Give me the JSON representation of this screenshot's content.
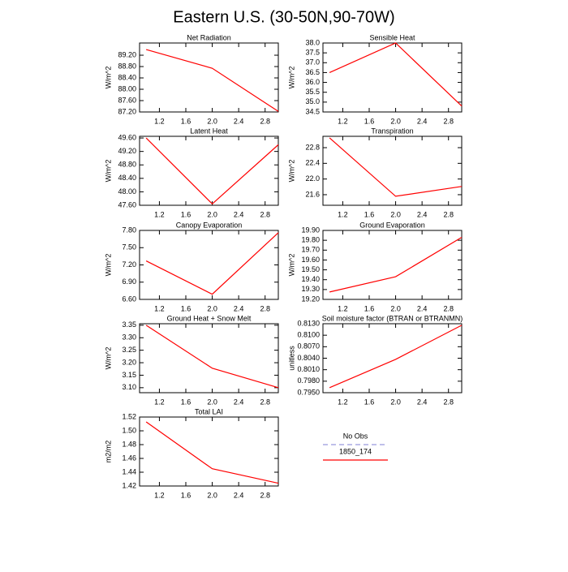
{
  "title": "Eastern U.S. (30-50N,90-70W)",
  "legend": [
    {
      "name": "No Obs",
      "color": "#9999dd",
      "dashed": true
    },
    {
      "name": "1850_174",
      "color": "#ff0000",
      "dashed": false
    }
  ],
  "chart_data": [
    {
      "type": "line",
      "title": "Net Radiation",
      "ylabel": "W/m^2",
      "x": [
        1,
        2,
        3
      ],
      "series": [
        {
          "color": "#ff0000",
          "values": [
            89.4,
            88.74,
            87.22
          ]
        }
      ],
      "xlim": [
        0.9,
        3.0
      ],
      "xticks": [
        1.2,
        1.6,
        {
          "value": 2.0,
          "label": "2.0"
        },
        2.4,
        2.8
      ],
      "ylim": [
        87.2,
        89.63
      ],
      "yticks": [
        {
          "value": 87.2,
          "label": "87.20"
        },
        {
          "value": 87.6,
          "label": "87.60"
        },
        {
          "value": 88.0,
          "label": "88.00"
        },
        {
          "value": 88.4,
          "label": "88.40"
        },
        {
          "value": 88.8,
          "label": "88.80"
        },
        {
          "value": 89.2,
          "label": "89.20"
        }
      ]
    },
    {
      "type": "line",
      "title": "Sensible Heat",
      "ylabel": "W/m^2",
      "x": [
        1,
        2,
        3
      ],
      "series": [
        {
          "color": "#ff0000",
          "values": [
            36.5,
            38.0,
            34.8
          ]
        }
      ],
      "xlim": [
        0.9,
        3.0
      ],
      "xticks": [
        1.2,
        1.6,
        {
          "value": 2.0,
          "label": "2.0"
        },
        2.4,
        2.8
      ],
      "ylim": [
        34.5,
        38.0
      ],
      "yticks": [
        34.5,
        {
          "value": 35.0,
          "label": "35.0"
        },
        35.5,
        {
          "value": 36.0,
          "label": "36.0"
        },
        36.5,
        {
          "value": 37.0,
          "label": "37.0"
        },
        37.5,
        {
          "value": 38.0,
          "label": "38.0"
        }
      ]
    },
    {
      "type": "line",
      "title": "Latent Heat",
      "ylabel": "W/m^2",
      "x": [
        1,
        2,
        3
      ],
      "series": [
        {
          "color": "#ff0000",
          "values": [
            49.6,
            47.64,
            49.4
          ]
        }
      ],
      "xlim": [
        0.9,
        3.0
      ],
      "xticks": [
        1.2,
        1.6,
        {
          "value": 2.0,
          "label": "2.0"
        },
        2.4,
        2.8
      ],
      "ylim": [
        47.6,
        49.65
      ],
      "yticks": [
        {
          "value": 47.6,
          "label": "47.60"
        },
        {
          "value": 48.0,
          "label": "48.00"
        },
        {
          "value": 48.4,
          "label": "48.40"
        },
        {
          "value": 48.8,
          "label": "48.80"
        },
        {
          "value": 49.2,
          "label": "49.20"
        },
        {
          "value": 49.6,
          "label": "49.60"
        }
      ]
    },
    {
      "type": "line",
      "title": "Transpiration",
      "ylabel": "W/m^2",
      "x": [
        1,
        2,
        3
      ],
      "series": [
        {
          "color": "#ff0000",
          "values": [
            23.05,
            21.56,
            21.81
          ]
        }
      ],
      "xlim": [
        0.9,
        3.0
      ],
      "xticks": [
        1.2,
        1.6,
        {
          "value": 2.0,
          "label": "2.0"
        },
        2.4,
        2.8
      ],
      "ylim": [
        21.33,
        23.09
      ],
      "yticks": [
        21.6,
        {
          "value": 22.0,
          "label": "22.0"
        },
        22.4,
        22.8
      ]
    },
    {
      "type": "line",
      "title": "Canopy Evaporation",
      "ylabel": "W/m^2",
      "x": [
        1,
        2,
        3
      ],
      "series": [
        {
          "color": "#ff0000",
          "values": [
            7.27,
            6.69,
            7.76
          ]
        }
      ],
      "xlim": [
        0.9,
        3.0
      ],
      "xticks": [
        1.2,
        1.6,
        {
          "value": 2.0,
          "label": "2.0"
        },
        2.4,
        2.8
      ],
      "ylim": [
        6.6,
        7.8
      ],
      "yticks": [
        {
          "value": 6.6,
          "label": "6.60"
        },
        {
          "value": 6.9,
          "label": "6.90"
        },
        {
          "value": 7.2,
          "label": "7.20"
        },
        {
          "value": 7.5,
          "label": "7.50"
        },
        {
          "value": 7.8,
          "label": "7.80"
        }
      ]
    },
    {
      "type": "line",
      "title": "Ground Evaporation",
      "ylabel": "W/m^2",
      "x": [
        1,
        2,
        3
      ],
      "series": [
        {
          "color": "#ff0000",
          "values": [
            19.275,
            19.43,
            19.83
          ]
        }
      ],
      "xlim": [
        0.9,
        3.0
      ],
      "xticks": [
        1.2,
        1.6,
        {
          "value": 2.0,
          "label": "2.0"
        },
        2.4,
        2.8
      ],
      "ylim": [
        19.2,
        19.9
      ],
      "yticks": [
        {
          "value": 19.2,
          "label": "19.20"
        },
        {
          "value": 19.3,
          "label": "19.30"
        },
        {
          "value": 19.4,
          "label": "19.40"
        },
        {
          "value": 19.5,
          "label": "19.50"
        },
        {
          "value": 19.6,
          "label": "19.60"
        },
        {
          "value": 19.7,
          "label": "19.70"
        },
        {
          "value": 19.8,
          "label": "19.80"
        },
        {
          "value": 19.9,
          "label": "19.90"
        }
      ]
    },
    {
      "type": "line",
      "title": "Ground Heat + Snow Melt",
      "ylabel": "W/m^2",
      "x": [
        1,
        2,
        3
      ],
      "series": [
        {
          "color": "#ff0000",
          "values": [
            3.35,
            3.178,
            3.1
          ]
        }
      ],
      "xlim": [
        0.9,
        3.0
      ],
      "xticks": [
        1.2,
        1.6,
        {
          "value": 2.0,
          "label": "2.0"
        },
        2.4,
        2.8
      ],
      "ylim": [
        3.08,
        3.356
      ],
      "yticks": [
        {
          "value": 3.1,
          "label": "3.10"
        },
        3.15,
        {
          "value": 3.2,
          "label": "3.20"
        },
        3.25,
        {
          "value": 3.3,
          "label": "3.30"
        },
        3.35
      ]
    },
    {
      "type": "line",
      "title": "Soil moisture factor (BTRAN or BTRANMN)",
      "ylabel": "unitless",
      "x": [
        1,
        2,
        3
      ],
      "series": [
        {
          "color": "#ff0000",
          "values": [
            0.7963,
            0.8037,
            0.8126
          ]
        }
      ],
      "xlim": [
        0.9,
        3.0
      ],
      "xticks": [
        1.2,
        1.6,
        {
          "value": 2.0,
          "label": "2.0"
        },
        2.4,
        2.8
      ],
      "ylim": [
        0.795,
        0.813
      ],
      "yticks": [
        {
          "value": 0.795,
          "label": "0.7950"
        },
        {
          "value": 0.798,
          "label": "0.7980"
        },
        {
          "value": 0.801,
          "label": "0.8010"
        },
        {
          "value": 0.804,
          "label": "0.8040"
        },
        {
          "value": 0.807,
          "label": "0.8070"
        },
        {
          "value": 0.81,
          "label": "0.8100"
        },
        {
          "value": 0.813,
          "label": "0.8130"
        }
      ]
    },
    {
      "type": "line",
      "title": "Total LAI",
      "ylabel": "m2/m2",
      "x": [
        1,
        2,
        3
      ],
      "series": [
        {
          "color": "#ff0000",
          "values": [
            1.513,
            1.445,
            1.424
          ]
        }
      ],
      "xlim": [
        0.9,
        3.0
      ],
      "xticks": [
        1.2,
        1.6,
        {
          "value": 2.0,
          "label": "2.0"
        },
        2.4,
        2.8
      ],
      "ylim": [
        1.42,
        1.52
      ],
      "yticks": [
        1.42,
        1.44,
        1.46,
        1.48,
        {
          "value": 1.5,
          "label": "1.50"
        },
        1.52
      ]
    }
  ]
}
